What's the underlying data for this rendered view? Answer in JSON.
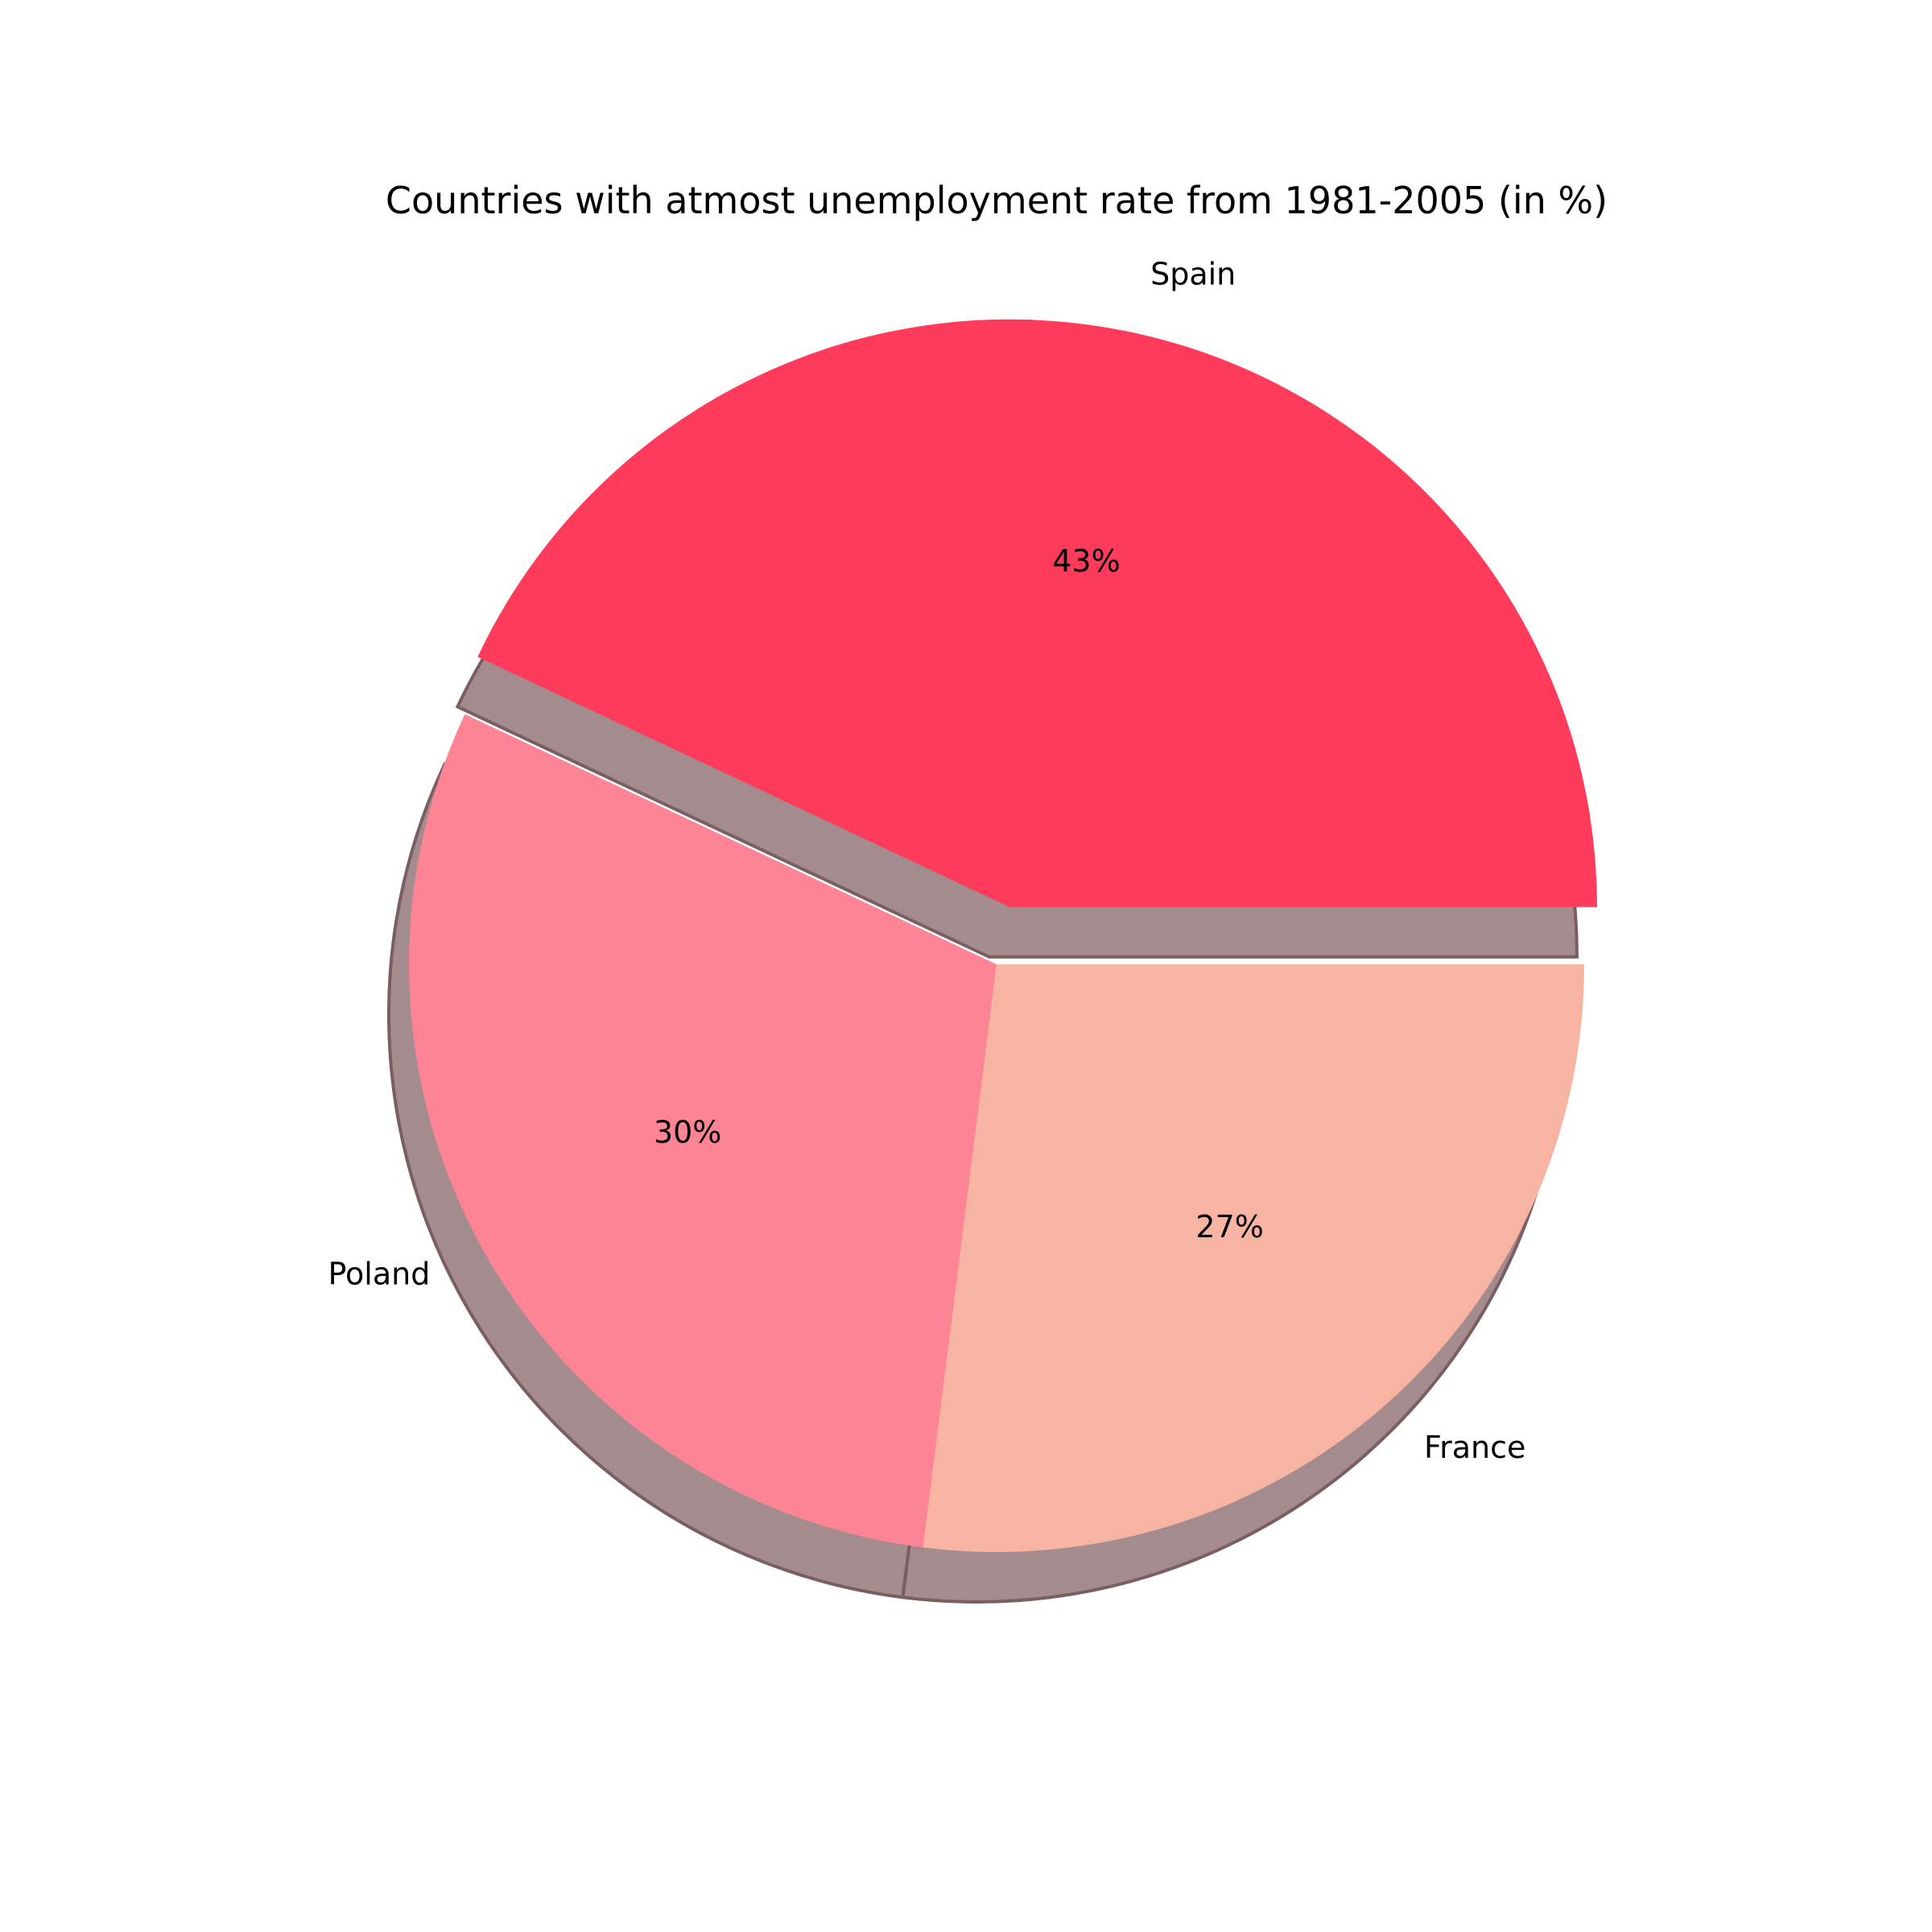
{
  "chart_data": {
    "type": "pie",
    "title": "Countries with atmost unemployment rate from 1981-2005 (in %)",
    "slices": [
      {
        "label": "Spain",
        "value": 43,
        "pct_label": "43%",
        "color": "#FF3B5C",
        "explode": 0.1
      },
      {
        "label": "Poland",
        "value": 30,
        "pct_label": "30%",
        "color": "#FC8495",
        "explode": 0.0
      },
      {
        "label": "France",
        "value": 27,
        "pct_label": "27%",
        "color": "#F8B4A2",
        "explode": 0.0
      }
    ],
    "start_angle_deg": 0,
    "direction": "counterclockwise",
    "shadow": true,
    "shadow_color": "#A48B8D",
    "shadow_edge_color": "#7A5E62"
  }
}
